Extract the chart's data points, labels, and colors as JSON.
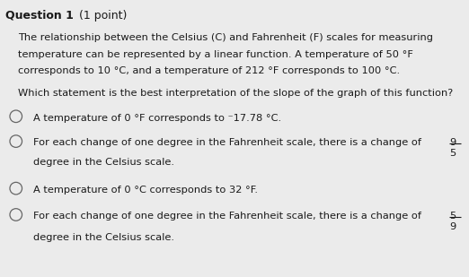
{
  "bg_color": "#ebebeb",
  "text_color": "#1a1a1a",
  "title_bold": "Question 1",
  "title_normal": " (1 point)",
  "para1_line1": "The relationship between the Celsius (C) and Fahrenheit (F) scales for measuring",
  "para1_line2": "temperature can be represented by a linear function. A temperature of 50 °F",
  "para1_line3": "corresponds to 10 °C, and a temperature of 212 °F corresponds to 100 °C.",
  "question": "Which statement is the best interpretation of the slope of the graph of this function?",
  "opt_a": "A temperature of 0 °F corresponds to ⁻17.78 °C.",
  "opt_b_pre": "For each change of one degree in the Fahrenheit scale, there is a change of ",
  "opt_b_line2": "degree in the Celsius scale.",
  "opt_b_num": "9",
  "opt_b_den": "5",
  "opt_c": "A temperature of 0 °C corresponds to 32 °F.",
  "opt_d_pre": "For each change of one degree in the Fahrenheit scale, there is a change of ",
  "opt_d_line2": "degree in the Celsius scale.",
  "opt_d_num": "5",
  "opt_d_den": "9",
  "fs_title": 9.0,
  "fs_body": 8.2,
  "circle_r": 0.013,
  "circle_color": "#666666"
}
